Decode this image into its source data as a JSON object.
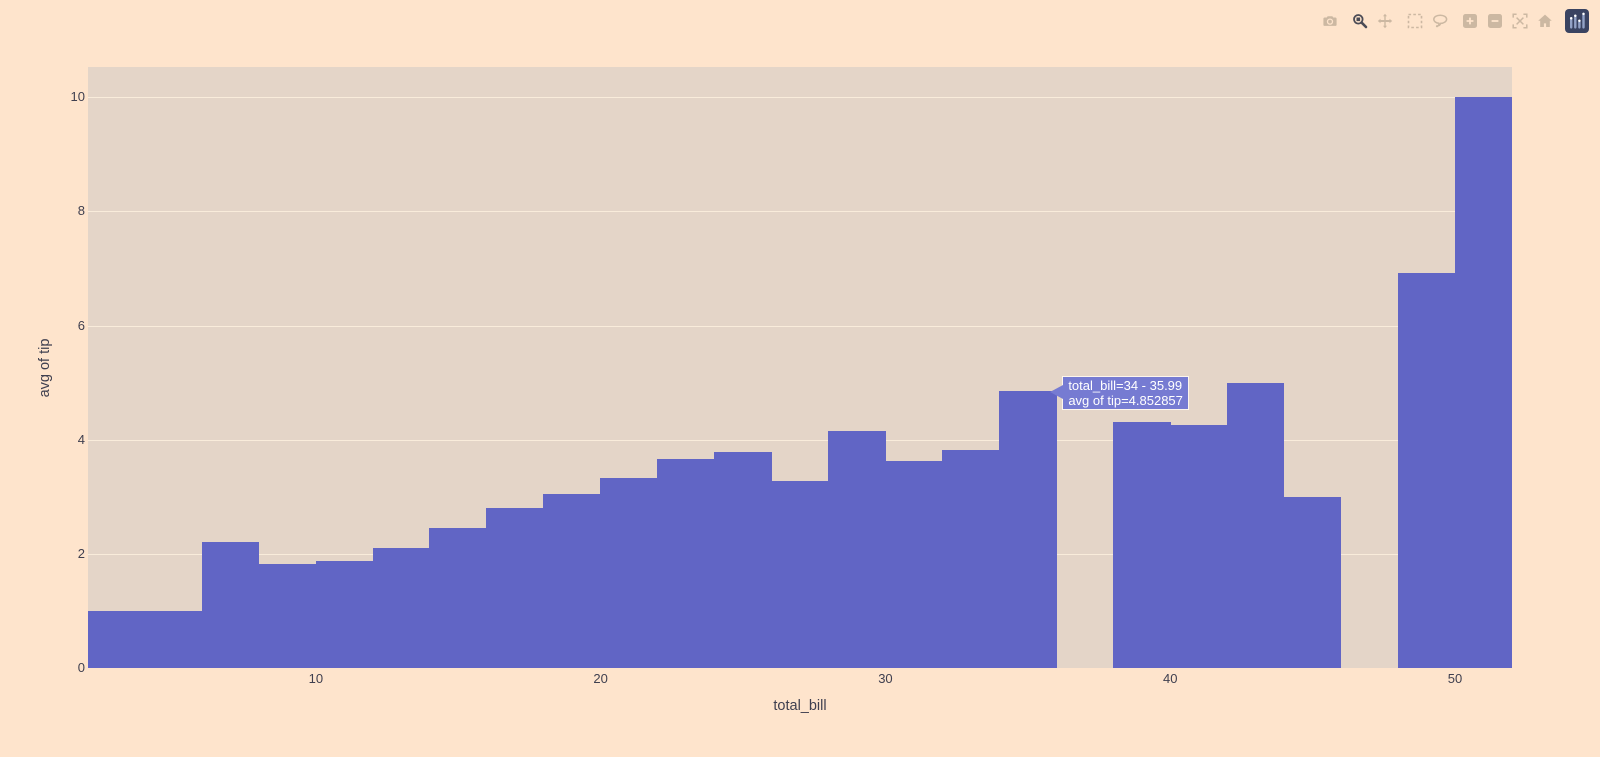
{
  "window": {
    "kind": "plotly-figure"
  },
  "colors": {
    "page_bg": "#fee4cc",
    "plot_bg": "#e4d5c8",
    "grid": "#f9ecdb",
    "bar": "#6165c5",
    "text": "#3f3f4f",
    "tooltip_bg": "#767bd2",
    "tooltip_text": "#ffffff",
    "modebar_icon": "#ccb8a2",
    "modebar_icon_active": "#4b4b55",
    "logo_bg": "#3a4361",
    "logo_bars": "#93a2c6"
  },
  "modebar": {
    "groups": [
      [
        {
          "name": "camera",
          "title": "Download plot as a png",
          "active": false
        }
      ],
      [
        {
          "name": "zoom",
          "title": "Zoom",
          "active": true
        },
        {
          "name": "pan",
          "title": "Pan",
          "active": false
        }
      ],
      [
        {
          "name": "box-select",
          "title": "Box Select",
          "active": false
        },
        {
          "name": "lasso-select",
          "title": "Lasso Select",
          "active": false
        }
      ],
      [
        {
          "name": "zoom-in",
          "title": "Zoom in",
          "active": false
        },
        {
          "name": "zoom-out",
          "title": "Zoom out",
          "active": false
        },
        {
          "name": "autoscale",
          "title": "Autoscale",
          "active": false
        },
        {
          "name": "home",
          "title": "Reset axes",
          "active": false
        }
      ],
      [
        {
          "name": "plotly-logo",
          "title": "Produced with Plotly",
          "active": false
        }
      ]
    ]
  },
  "tooltip": {
    "line1": "total_bill=34 - 35.99",
    "line2": "avg of tip=4.852857"
  },
  "chart_data": {
    "type": "bar",
    "subtype": "histogram",
    "histfunc": "avg",
    "title": "",
    "xlabel": "total_bill",
    "ylabel": "avg of tip",
    "bin_size": 2,
    "bin_starts": [
      2,
      4,
      6,
      8,
      10,
      12,
      14,
      16,
      18,
      20,
      22,
      24,
      26,
      28,
      30,
      32,
      34,
      36,
      38,
      40,
      42,
      44,
      46,
      48,
      50
    ],
    "values": [
      1.0,
      1.0,
      2.21,
      1.83,
      1.88,
      2.1,
      2.46,
      2.81,
      3.04,
      3.33,
      3.66,
      3.78,
      3.28,
      4.16,
      3.63,
      3.82,
      4.852857,
      0,
      4.31,
      4.25,
      5.0,
      3.0,
      0,
      6.92,
      10.0
    ],
    "hovered_bin": {
      "start": 34,
      "end": 35.99,
      "value": 4.852857
    },
    "x_ticks": [
      10,
      20,
      30,
      40,
      50
    ],
    "y_ticks": [
      0,
      2,
      4,
      6,
      8,
      10
    ],
    "xlim": [
      2,
      52
    ],
    "ylim": [
      0,
      10.53
    ],
    "grid": true,
    "legend": false
  }
}
